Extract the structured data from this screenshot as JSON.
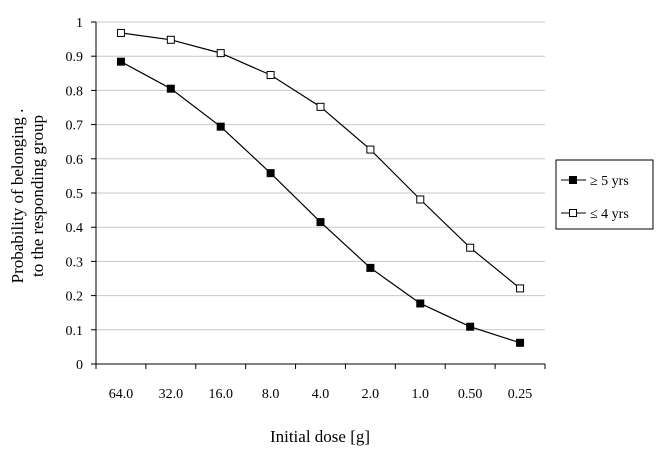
{
  "chart_data": {
    "type": "line",
    "title": "",
    "xlabel": "Initial dose  [g]",
    "ylabel_lines": [
      "Probability of belonging .",
      "to the responding group"
    ],
    "categories": [
      "64.0",
      "32.0",
      "16.0",
      "8.0",
      "4.0",
      "2.0",
      "1.0",
      "0.50",
      "0.25"
    ],
    "yticks": [
      "0",
      "0.1",
      "0.2",
      "0.3",
      "0.4",
      "0.5",
      "0.6",
      "0.7",
      "0.8",
      "0.9",
      "1"
    ],
    "ylim": [
      0,
      1
    ],
    "grid": true,
    "legend_position": "right",
    "series": [
      {
        "name": "≥ 5 yrs",
        "marker": "filled-square",
        "color": "#000000",
        "values": [
          0.884,
          0.805,
          0.694,
          0.558,
          0.415,
          0.281,
          0.177,
          0.109,
          0.062
        ]
      },
      {
        "name": "≤ 4 yrs",
        "marker": "open-square",
        "color": "#000000",
        "values": [
          0.968,
          0.948,
          0.909,
          0.845,
          0.752,
          0.627,
          0.481,
          0.34,
          0.221
        ]
      }
    ]
  }
}
